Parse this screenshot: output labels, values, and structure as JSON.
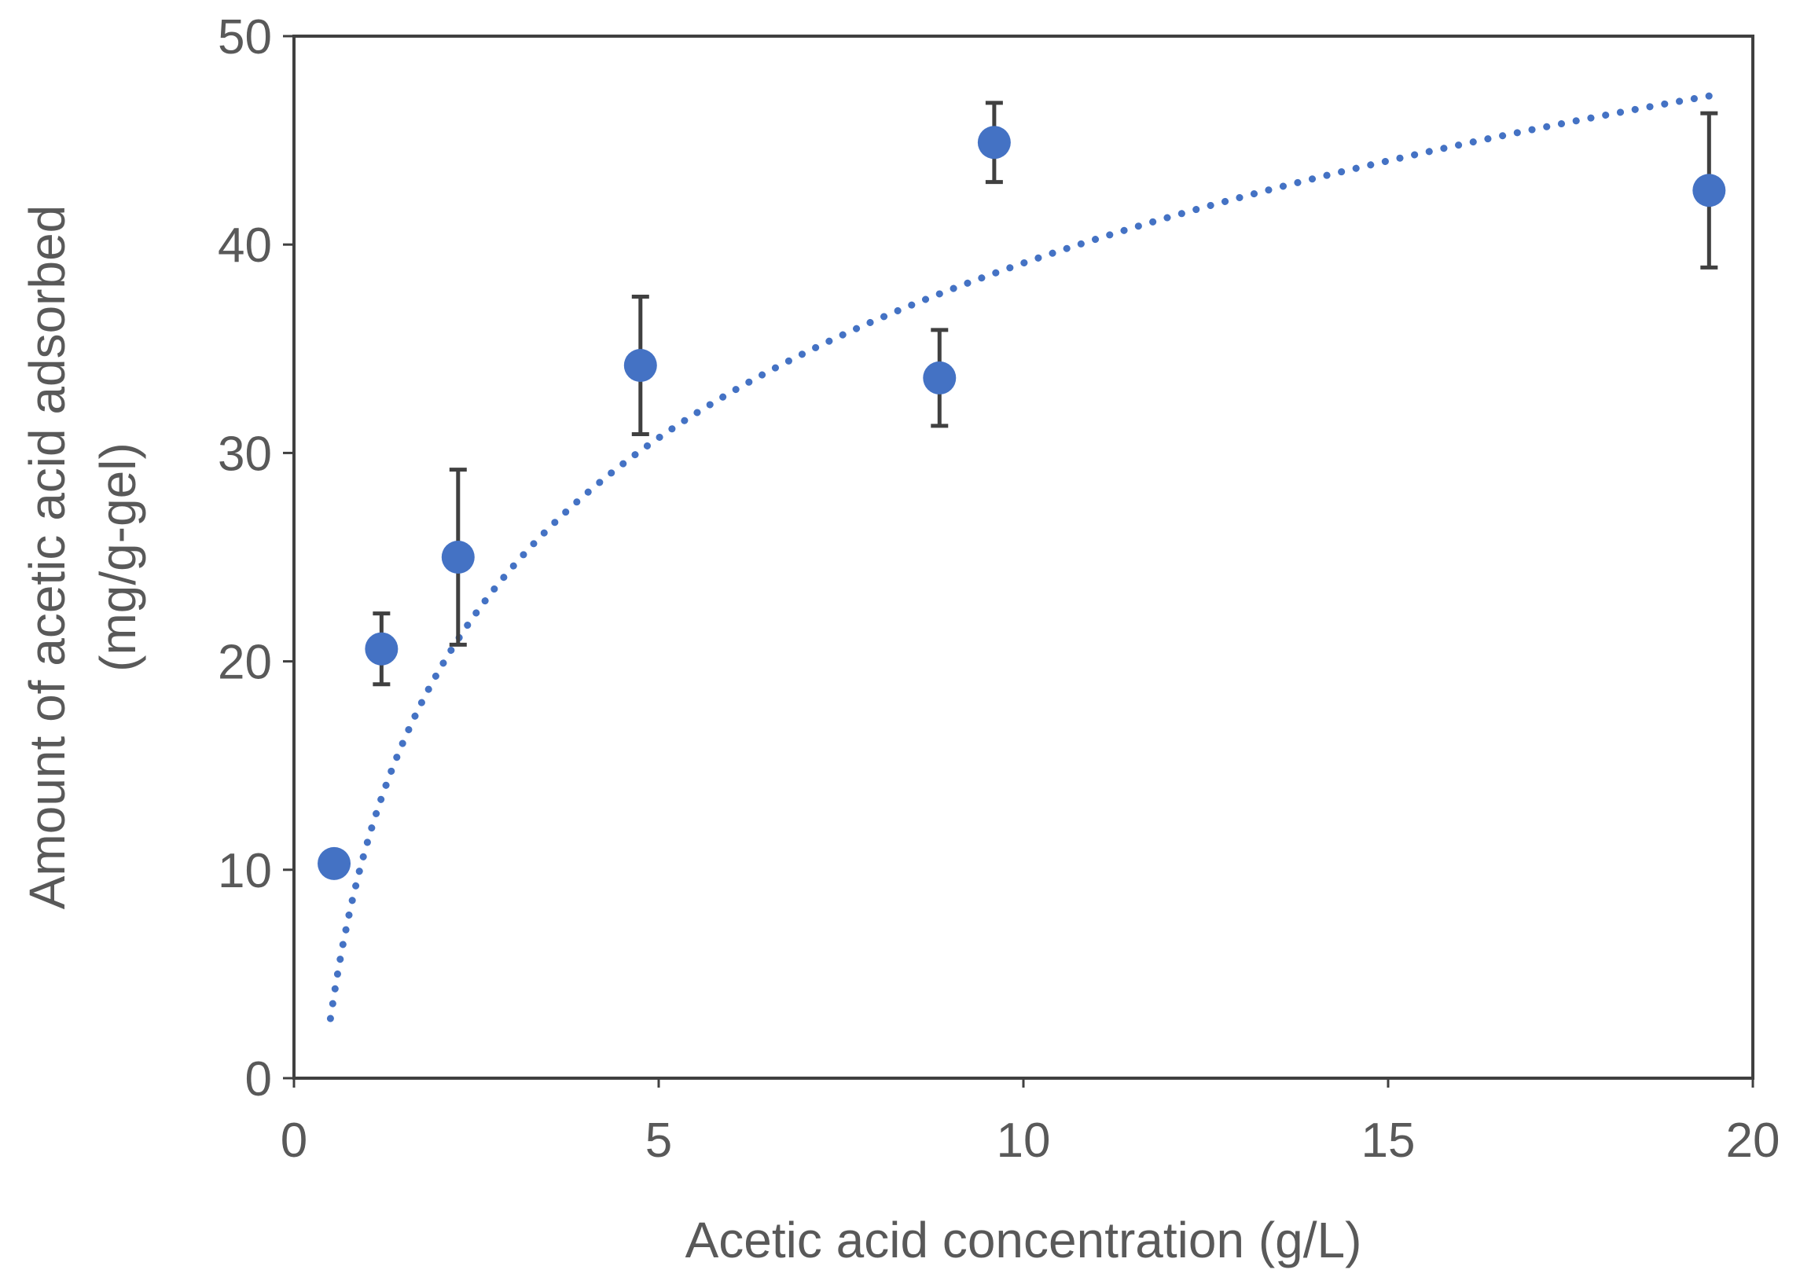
{
  "chart_data": {
    "type": "scatter",
    "xlabel": "Acetic acid concentration  (g/L)",
    "ylabel_line1": "Amount of acetic acid adsorbed",
    "ylabel_line2": "(mg/g-gel)",
    "xlim": [
      0,
      20
    ],
    "ylim": [
      0,
      50
    ],
    "x_ticks": [
      "0",
      "5",
      "10",
      "15",
      "20"
    ],
    "y_ticks": [
      "0",
      "10",
      "20",
      "30",
      "40",
      "50"
    ],
    "grid": false,
    "legend": "none",
    "colors": {
      "marker": "#4472C4",
      "trendline": "#4472C4",
      "error_bar": "#404040",
      "frame": "#404040"
    },
    "series": [
      {
        "points": [
          {
            "x": 0.55,
            "y": 10.3,
            "err": 0.0
          },
          {
            "x": 1.2,
            "y": 20.6,
            "err": 1.7
          },
          {
            "x": 2.25,
            "y": 25.0,
            "err": 4.2
          },
          {
            "x": 4.75,
            "y": 34.2,
            "err": 3.3
          },
          {
            "x": 8.85,
            "y": 33.6,
            "err": 2.3
          },
          {
            "x": 9.6,
            "y": 44.9,
            "err": 1.9
          },
          {
            "x": 19.4,
            "y": 42.6,
            "err": 3.7
          }
        ]
      }
    ],
    "trendline": {
      "type": "logarithmic",
      "a": 11.25,
      "b": 12.1,
      "x_range": [
        0.5,
        19.4
      ]
    }
  }
}
